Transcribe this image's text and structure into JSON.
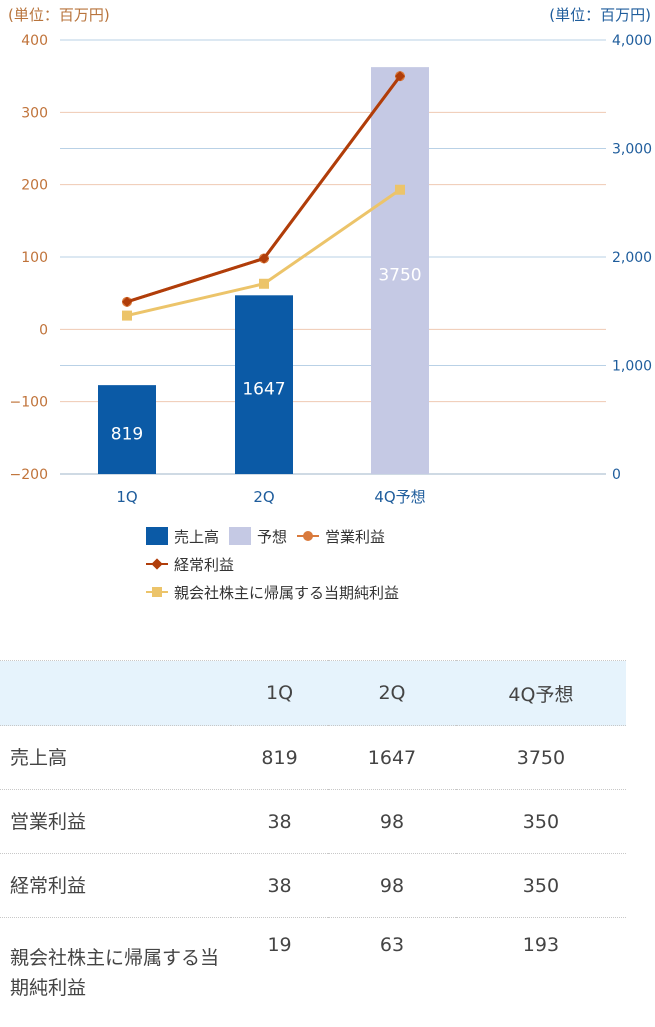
{
  "chart_data": {
    "type": "bar-line-combo",
    "categories": [
      "1Q",
      "2Q",
      "4Q予想"
    ],
    "unit_left": "(単位：百万円)",
    "unit_right": "(単位：百万円)",
    "left_axis": {
      "ylim": [
        -200,
        400
      ],
      "ticks": [
        -200,
        -100,
        0,
        100,
        200,
        300,
        400
      ],
      "tick_labels": [
        "−200",
        "−100",
        "0",
        "100",
        "200",
        "300",
        "400"
      ]
    },
    "right_axis": {
      "ylim": [
        0,
        4000
      ],
      "ticks": [
        0,
        1000,
        2000,
        3000,
        4000
      ],
      "tick_labels": [
        "0",
        "1,000",
        "2,000",
        "3,000",
        "4,000"
      ]
    },
    "bars": [
      {
        "category": "1Q",
        "value": 819,
        "label": "819",
        "series": "売上高",
        "color": "#0b5aa6"
      },
      {
        "category": "2Q",
        "value": 1647,
        "label": "1647",
        "series": "売上高",
        "color": "#0b5aa6"
      },
      {
        "category": "4Q予想",
        "value": 3750,
        "label": "3750",
        "series": "予想",
        "color": "#c5c9e4"
      }
    ],
    "series": [
      {
        "name": "営業利益",
        "axis": "left",
        "values": [
          38,
          98,
          350
        ],
        "color": "#d97a3c",
        "marker": "circle"
      },
      {
        "name": "経常利益",
        "axis": "left",
        "values": [
          38,
          98,
          350
        ],
        "color": "#b03d0a",
        "marker": "diamond"
      },
      {
        "name": "親会社株主に帰属する当期純利益",
        "axis": "left",
        "values": [
          19,
          63,
          193
        ],
        "color": "#ecc46a",
        "marker": "square"
      }
    ],
    "legend": {
      "placement": "bottom",
      "items": [
        {
          "label": "売上高",
          "kind": "rect",
          "color": "#0b5aa6"
        },
        {
          "label": "予想",
          "kind": "rect",
          "color": "#c5c9e4"
        },
        {
          "label": "営業利益",
          "kind": "line",
          "color": "#d97a3c",
          "marker": "circle"
        },
        {
          "label": "経常利益",
          "kind": "line",
          "color": "#b03d0a",
          "marker": "diamond"
        },
        {
          "label": "親会社株主に帰属する当期純利益",
          "kind": "line",
          "color": "#ecc46a",
          "marker": "square"
        }
      ]
    },
    "grid": true
  },
  "table": {
    "headers": [
      "",
      "1Q",
      "2Q",
      "4Q予想"
    ],
    "rows": [
      {
        "label": "売上高",
        "values": [
          "819",
          "1647",
          "3750"
        ]
      },
      {
        "label": "営業利益",
        "values": [
          "38",
          "98",
          "350"
        ]
      },
      {
        "label": "経常利益",
        "values": [
          "38",
          "98",
          "350"
        ]
      },
      {
        "label": "親会社株主に帰属する当期純利益",
        "values": [
          "19",
          "63",
          "193"
        ]
      }
    ]
  }
}
